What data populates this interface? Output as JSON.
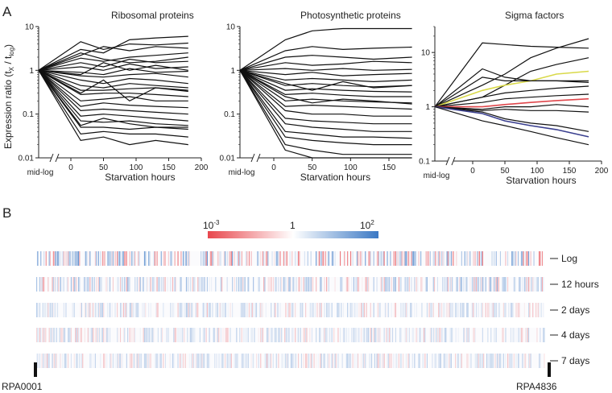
{
  "panel_labels": {
    "a": "A",
    "b": "B"
  },
  "y_axis_label": "Expression ratio (t",
  "y_axis_sub_x": "X",
  "y_axis_mid": " / t",
  "y_axis_sub_log": "log",
  "y_axis_close": ")",
  "colors": {
    "line": "#111111",
    "yellow": "#d9d94a",
    "red": "#e0474c",
    "blue": "#3a3f8f",
    "heat_low": "#e8474d",
    "heat_mid": "#ffffff",
    "heat_high": "#3a78c4"
  },
  "chart_data": [
    {
      "type": "line",
      "title": "Ribosomal proteins",
      "xlabel": "Starvation hours",
      "ylabel": "Expression ratio (tX / tlog)",
      "x_categories": [
        "mid-log"
      ],
      "x": [
        0,
        15,
        50,
        90,
        130,
        180
      ],
      "xticks": [
        0,
        50,
        100,
        150,
        200
      ],
      "yscale": "log",
      "ylim": [
        0.01,
        10
      ],
      "yticks": [
        "0.01",
        "0.1",
        "1",
        "10"
      ],
      "series": [
        {
          "name": "r1",
          "values": [
            1,
            4.5,
            3.0,
            4.0,
            3.8,
            4.2
          ]
        },
        {
          "name": "r2",
          "values": [
            1,
            3.0,
            2.5,
            5.0,
            5.5,
            6.0
          ]
        },
        {
          "name": "r3",
          "values": [
            1,
            2.2,
            3.5,
            2.8,
            3.5,
            3.2
          ]
        },
        {
          "name": "r4",
          "values": [
            1,
            1.9,
            1.6,
            2.0,
            2.2,
            2.5
          ]
        },
        {
          "name": "r5",
          "values": [
            1,
            1.5,
            1.2,
            1.8,
            1.5,
            1.6
          ]
        },
        {
          "name": "r6",
          "values": [
            1,
            1.2,
            1.0,
            1.4,
            1.1,
            1.2
          ]
        },
        {
          "name": "r7",
          "values": [
            1,
            0.9,
            0.8,
            1.1,
            0.9,
            0.95
          ]
        },
        {
          "name": "r8",
          "values": [
            1,
            0.75,
            0.7,
            0.8,
            0.85,
            0.7
          ]
        },
        {
          "name": "r9",
          "values": [
            1,
            0.6,
            0.5,
            0.65,
            0.6,
            0.5
          ]
        },
        {
          "name": "r10",
          "values": [
            1,
            0.45,
            0.4,
            0.5,
            0.45,
            0.4
          ]
        },
        {
          "name": "r11",
          "values": [
            1,
            0.35,
            0.35,
            0.38,
            0.4,
            0.33
          ]
        },
        {
          "name": "r12",
          "values": [
            1,
            0.28,
            0.3,
            0.3,
            0.28,
            0.25
          ]
        },
        {
          "name": "r13",
          "values": [
            1,
            0.2,
            0.22,
            0.25,
            0.2,
            0.2
          ]
        },
        {
          "name": "r14",
          "values": [
            1,
            0.15,
            0.18,
            0.16,
            0.15,
            0.14
          ]
        },
        {
          "name": "r15",
          "values": [
            1,
            0.12,
            0.13,
            0.12,
            0.11,
            0.1
          ]
        },
        {
          "name": "r16",
          "values": [
            1,
            0.09,
            0.1,
            0.09,
            0.08,
            0.07
          ]
        },
        {
          "name": "r17",
          "values": [
            1,
            0.07,
            0.065,
            0.07,
            0.06,
            0.055
          ]
        },
        {
          "name": "r18",
          "values": [
            1,
            0.05,
            0.05,
            0.045,
            0.05,
            0.045
          ]
        },
        {
          "name": "r19",
          "values": [
            1,
            0.035,
            0.04,
            0.035,
            0.035,
            0.03
          ]
        },
        {
          "name": "r20",
          "values": [
            1,
            0.025,
            0.03,
            0.02,
            0.025,
            0.02
          ]
        },
        {
          "name": "r21",
          "values": [
            1,
            0.055,
            0.08,
            0.06,
            0.05,
            0.05
          ]
        },
        {
          "name": "r22",
          "values": [
            1,
            0.3,
            0.6,
            0.2,
            0.4,
            0.35
          ]
        },
        {
          "name": "r23",
          "values": [
            1,
            0.8,
            1.5,
            1.0,
            1.3,
            1.0
          ]
        },
        {
          "name": "r24",
          "values": [
            1,
            2.5,
            1.8,
            1.5,
            1.6,
            2.0
          ]
        }
      ]
    },
    {
      "type": "line",
      "title": "Photosynthetic proteins",
      "xlabel": "Starvation hours",
      "ylabel": "",
      "x_categories": [
        "mid-log"
      ],
      "x": [
        0,
        15,
        50,
        90,
        130,
        180
      ],
      "xticks": [
        0,
        50,
        100,
        150
      ],
      "yscale": "log",
      "ylim": [
        0.01,
        10
      ],
      "yticks": [
        "0.01",
        "0.1",
        "1",
        "10"
      ],
      "series": [
        {
          "name": "p1",
          "values": [
            1,
            5.0,
            8.0,
            9.0,
            9.0,
            9.0
          ]
        },
        {
          "name": "p2",
          "values": [
            1,
            2.8,
            3.5,
            3.0,
            3.2,
            3.4
          ]
        },
        {
          "name": "p3",
          "values": [
            1,
            2.0,
            2.2,
            2.0,
            1.8,
            2.0
          ]
        },
        {
          "name": "p4",
          "values": [
            1,
            1.5,
            1.3,
            1.4,
            1.6,
            1.5
          ]
        },
        {
          "name": "p5",
          "values": [
            1,
            1.1,
            1.0,
            1.1,
            1.0,
            1.05
          ]
        },
        {
          "name": "p6",
          "values": [
            1,
            0.8,
            0.9,
            0.75,
            0.8,
            0.85
          ]
        },
        {
          "name": "p7",
          "values": [
            1,
            0.6,
            0.65,
            0.6,
            0.55,
            0.6
          ]
        },
        {
          "name": "p8",
          "values": [
            1,
            0.45,
            0.5,
            0.45,
            0.42,
            0.45
          ]
        },
        {
          "name": "p9",
          "values": [
            1,
            0.35,
            0.38,
            0.35,
            0.33,
            0.32
          ]
        },
        {
          "name": "p10",
          "values": [
            1,
            0.28,
            0.3,
            0.27,
            0.25,
            0.25
          ]
        },
        {
          "name": "p11",
          "values": [
            1,
            0.2,
            0.22,
            0.2,
            0.19,
            0.18
          ]
        },
        {
          "name": "p12",
          "values": [
            1,
            0.15,
            0.16,
            0.15,
            0.14,
            0.13
          ]
        },
        {
          "name": "p13",
          "values": [
            1,
            0.12,
            0.1,
            0.1,
            0.09,
            0.09
          ]
        },
        {
          "name": "p14",
          "values": [
            1,
            0.08,
            0.07,
            0.065,
            0.06,
            0.06
          ]
        },
        {
          "name": "p15",
          "values": [
            1,
            0.06,
            0.05,
            0.045,
            0.04,
            0.04
          ]
        },
        {
          "name": "p16",
          "values": [
            1,
            0.04,
            0.035,
            0.03,
            0.03,
            0.028
          ]
        },
        {
          "name": "p17",
          "values": [
            1,
            0.03,
            0.025,
            0.022,
            0.02,
            0.02
          ]
        },
        {
          "name": "p18",
          "values": [
            1,
            0.02,
            0.015,
            0.012,
            0.012,
            0.012
          ]
        },
        {
          "name": "p19",
          "values": [
            1,
            0.015,
            0.01,
            0.01,
            0.01,
            0.01
          ]
        },
        {
          "name": "p20",
          "values": [
            1,
            0.5,
            0.35,
            0.55,
            0.4,
            0.45
          ]
        },
        {
          "name": "p21",
          "values": [
            1,
            0.25,
            0.18,
            0.22,
            0.2,
            0.17
          ]
        }
      ]
    },
    {
      "type": "line",
      "title": "Sigma factors",
      "xlabel": "Starvation hours",
      "ylabel": "",
      "x_categories": [
        "mid-log"
      ],
      "x": [
        0,
        15,
        50,
        90,
        130,
        180
      ],
      "xticks": [
        0,
        50,
        100,
        150,
        200
      ],
      "yscale": "log",
      "ylim": [
        0.1,
        30
      ],
      "yticks": [
        "0.1",
        "1",
        "10"
      ],
      "series": [
        {
          "name": "s1",
          "values": [
            1,
            15,
            14,
            13,
            12.5,
            12
          ],
          "color": "#111111"
        },
        {
          "name": "s2",
          "values": [
            1,
            5.0,
            3.5,
            3.0,
            3.0,
            2.8
          ],
          "color": "#111111"
        },
        {
          "name": "s3",
          "values": [
            1,
            2.5,
            4.0,
            8.0,
            12,
            18
          ],
          "color": "#111111"
        },
        {
          "name": "s4",
          "values": [
            1,
            1.5,
            2.5,
            4.5,
            6.0,
            8.0
          ],
          "color": "#111111"
        },
        {
          "name": "s5",
          "values": [
            1,
            2.0,
            2.5,
            3.0,
            4.0,
            4.5
          ],
          "color": "#d9d94a"
        },
        {
          "name": "s6",
          "values": [
            1,
            3.5,
            3.0,
            3.0,
            3.0,
            3.0
          ],
          "color": "#111111"
        },
        {
          "name": "s7",
          "values": [
            1,
            1.5,
            1.8,
            2.0,
            2.2,
            2.4
          ],
          "color": "#111111"
        },
        {
          "name": "s8",
          "values": [
            1,
            1.2,
            1.4,
            1.5,
            1.6,
            1.7
          ],
          "color": "#111111"
        },
        {
          "name": "s9",
          "values": [
            1,
            1.0,
            1.1,
            1.2,
            1.3,
            1.4
          ],
          "color": "#e0474c"
        },
        {
          "name": "s10",
          "values": [
            1,
            0.9,
            1.0,
            1.0,
            1.1,
            1.0
          ],
          "color": "#111111"
        },
        {
          "name": "s11",
          "values": [
            1,
            0.85,
            0.9,
            0.85,
            0.85,
            0.8
          ],
          "color": "#111111"
        },
        {
          "name": "s12",
          "values": [
            1,
            0.8,
            0.6,
            0.5,
            0.45,
            0.35
          ],
          "color": "#111111"
        },
        {
          "name": "s13",
          "values": [
            1,
            0.75,
            0.55,
            0.45,
            0.38,
            0.28
          ],
          "color": "#3a3f8f"
        },
        {
          "name": "s14",
          "values": [
            1,
            0.55,
            0.45,
            0.35,
            0.27,
            0.2
          ],
          "color": "#111111"
        }
      ]
    }
  ],
  "heatmap": {
    "legend_min": "10",
    "legend_min_exp": "-3",
    "legend_mid": "1",
    "legend_max": "10",
    "legend_max_exp": "2",
    "rows": [
      "Log",
      "12 hours",
      "2 days",
      "4 days",
      "7 days"
    ],
    "start_gene": "RPA0001",
    "end_gene": "RPA4836"
  }
}
